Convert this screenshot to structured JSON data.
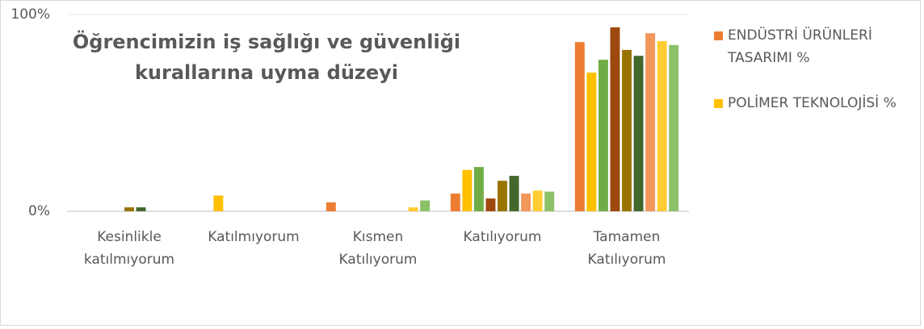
{
  "chart_data": {
    "type": "bar",
    "title": "Öğrencimizin iş sağlığı ve güvenliği kurallarına uyma düzeyi",
    "categories": [
      "Kesinlikle katılmıyorum",
      "Katılmıyorum",
      "Kısmen Katılıyorum",
      "Katılıyorum",
      "Tamamen Katılıyorum"
    ],
    "series": [
      {
        "name": "ENDÜSTRİ ÜRÜNLERİ TASARIMI %",
        "color": "#ed7d31",
        "values": [
          0,
          0,
          4.5,
          9,
          86
        ]
      },
      {
        "name": "POLİMER TEKNOLOJİSİ %",
        "color": "#ffc000",
        "values": [
          0,
          8,
          0,
          21,
          70.5
        ]
      },
      {
        "color": "#70ad47",
        "values": [
          0,
          0,
          0,
          22.5,
          77
        ]
      },
      {
        "color": "#9e480e",
        "values": [
          0,
          0,
          0,
          6.5,
          93.5
        ]
      },
      {
        "color": "#997300",
        "values": [
          2,
          0,
          0,
          15.5,
          82
        ]
      },
      {
        "color": "#43682b",
        "values": [
          2,
          0,
          0,
          18,
          79
        ]
      },
      {
        "color": "#f1975a",
        "values": [
          0,
          0,
          0,
          9,
          90.5
        ]
      },
      {
        "color": "#ffcd33",
        "values": [
          0,
          0,
          2,
          10.5,
          86.5
        ]
      },
      {
        "color": "#8cc168",
        "values": [
          0,
          0,
          5.5,
          10,
          84.5
        ]
      }
    ],
    "ylim": [
      0,
      100
    ],
    "yticks": [
      {
        "value": 0,
        "label": "0%"
      },
      {
        "value": 100,
        "label": "100%"
      }
    ],
    "grid": true,
    "legend": "right"
  }
}
